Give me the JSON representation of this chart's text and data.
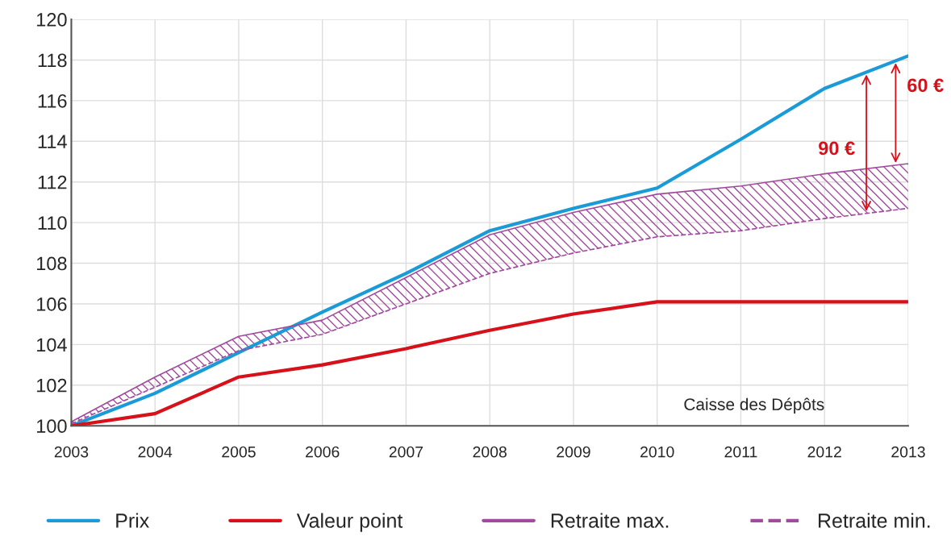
{
  "chart_data": {
    "type": "line",
    "x": [
      2003,
      2004,
      2005,
      2006,
      2007,
      2008,
      2009,
      2010,
      2011,
      2012,
      2013
    ],
    "series": [
      {
        "name": "Prix",
        "color": "#1a9bd7",
        "values": [
          100,
          101.6,
          103.6,
          105.6,
          107.5,
          109.6,
          110.7,
          111.7,
          114.1,
          116.6,
          118.2
        ]
      },
      {
        "name": "Valeur point",
        "color": "#d7101a",
        "values": [
          100,
          100.6,
          102.4,
          103.0,
          103.8,
          104.7,
          105.5,
          106.1,
          106.1,
          106.1,
          106.1
        ]
      },
      {
        "name": "Retraite max.",
        "color": "#a14a9e",
        "values": [
          100.2,
          102.4,
          104.4,
          105.2,
          107.3,
          109.4,
          110.5,
          111.4,
          111.8,
          112.4,
          112.9
        ]
      },
      {
        "name": "Retraite min.",
        "color": "#a14a9e",
        "line_style": "dashed",
        "values": [
          100.1,
          101.9,
          103.7,
          104.5,
          106.0,
          107.5,
          108.5,
          109.3,
          109.6,
          110.2,
          110.7
        ],
        "lower": [
          100.1,
          101.9,
          103.7,
          104.5,
          106.0,
          107.5,
          108.5,
          109.3,
          109.6,
          110.2,
          110.7
        ],
        "upper": [
          100.2,
          102.4,
          104.4,
          105.2,
          107.3,
          109.4,
          110.5,
          111.4,
          111.8,
          112.4,
          112.9
        ]
      }
    ],
    "xlim": [
      2003,
      2013
    ],
    "xticks": [
      2003,
      2004,
      2005,
      2006,
      2007,
      2008,
      2009,
      2010,
      2011,
      2012,
      2013
    ],
    "ylim": [
      100,
      120
    ],
    "yticks": [
      100,
      102,
      104,
      106,
      108,
      110,
      112,
      114,
      116,
      118,
      120
    ],
    "grid": true,
    "legend": "bottom",
    "line_style": "solid",
    "annotations": [
      "90 €",
      {
        "text": "60 €",
        "x": 2012.85,
        "y": 117.96
      },
      "Caisse des Dépôts"
    ]
  }
}
